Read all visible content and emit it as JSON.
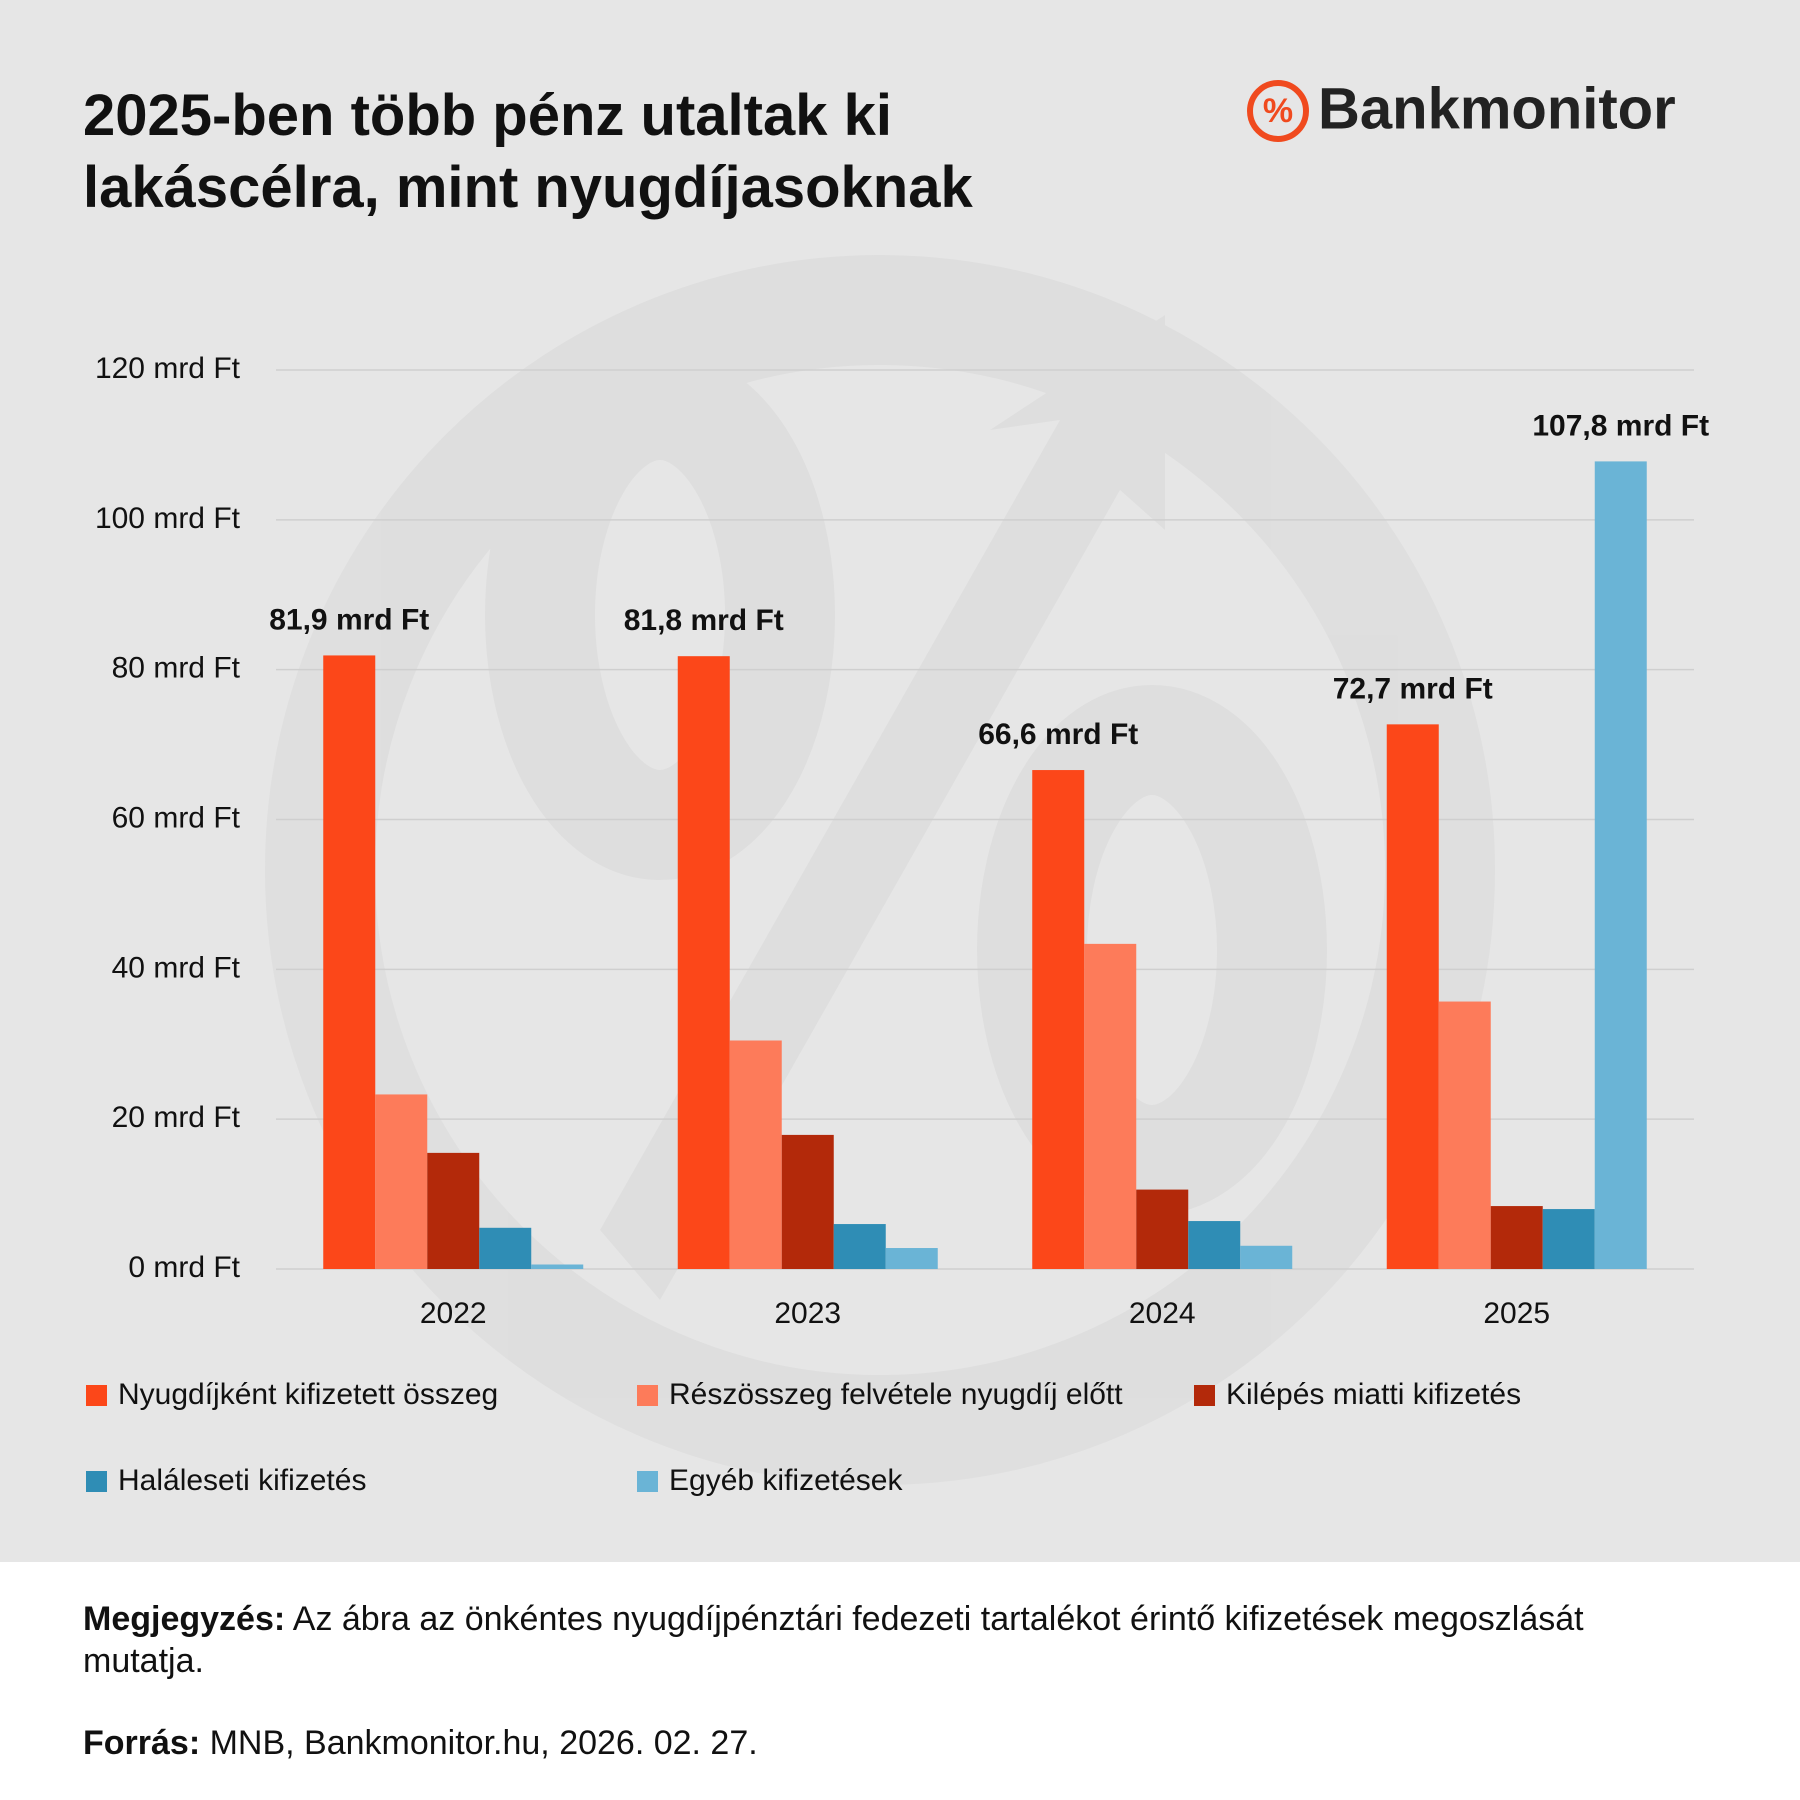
{
  "chart_data": {
    "type": "bar",
    "title": "2025-ben több pénz utaltak ki lakáscélra, mint nyugdíjasoknak",
    "brand": "Bankmonitor",
    "categories": [
      "2022",
      "2023",
      "2024",
      "2025"
    ],
    "series": [
      {
        "name": "Nyugdíjként kifizetett összeg",
        "color": "#fc4719",
        "values": [
          81.9,
          81.8,
          66.6,
          72.7
        ],
        "value_labels": [
          "81,9 mrd Ft",
          "81,8 mrd Ft",
          "66,6 mrd Ft",
          "72,7 mrd Ft"
        ]
      },
      {
        "name": "Részösszeg felvétele nyugdíj előtt",
        "color": "#fd7b5a",
        "values": [
          23.3,
          30.5,
          43.4,
          35.7
        ]
      },
      {
        "name": "Kilépés miatti kifizetés",
        "color": "#b3290a",
        "values": [
          15.5,
          17.9,
          10.6,
          8.4
        ]
      },
      {
        "name": "Haláleseti kifizetés",
        "color": "#2f8db5",
        "values": [
          5.5,
          6.0,
          6.4,
          8.0
        ]
      },
      {
        "name": "Egyéb kifizetések",
        "color": "#6ab4d6",
        "values": [
          0.6,
          2.8,
          3.1,
          107.8
        ],
        "value_labels": [
          null,
          null,
          null,
          "107,8 mrd Ft"
        ]
      }
    ],
    "ylim": [
      0,
      120
    ],
    "yticks": [
      {
        "value": 0,
        "label": "0 mrd Ft"
      },
      {
        "value": 20,
        "label": "20 mrd Ft"
      },
      {
        "value": 40,
        "label": "40 mrd Ft"
      },
      {
        "value": 60,
        "label": "60 mrd Ft"
      },
      {
        "value": 80,
        "label": "80 mrd Ft"
      },
      {
        "value": 100,
        "label": "100 mrd Ft"
      },
      {
        "value": 120,
        "label": "120 mrd Ft"
      }
    ],
    "grid": true,
    "legend": "bottom",
    "note_label": "Megjegyzés:",
    "note_text": "Az ábra az önkéntes nyugdíjpénztári fedezeti tartalékot érintő kifizetések megoszlását mutatja.",
    "source_label": "Forrás:",
    "source_text": "MNB, Bankmonitor.hu, 2026. 02. 27."
  }
}
